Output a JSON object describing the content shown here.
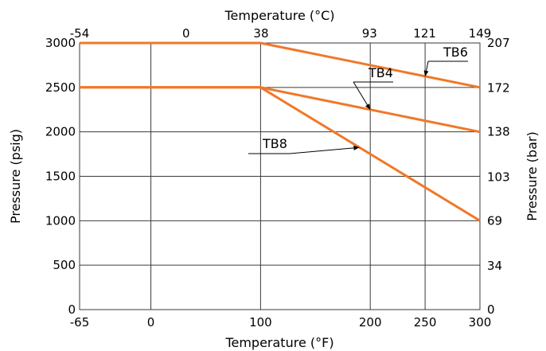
{
  "chart_data": {
    "type": "line",
    "title": "",
    "xlabel": "Temperature (°F)",
    "ylabel": "Pressure (psig)",
    "x2label": "Temperature (°C)",
    "y2label": "Pressure (bar)",
    "xlim": [
      -65,
      300
    ],
    "ylim": [
      0,
      3000
    ],
    "grid": true,
    "line_color": "#f07828",
    "x_ticks": [
      {
        "value": -65,
        "label": "-65"
      },
      {
        "value": 0,
        "label": "0"
      },
      {
        "value": 100,
        "label": "100"
      },
      {
        "value": 200,
        "label": "200"
      },
      {
        "value": 250,
        "label": "250"
      },
      {
        "value": 300,
        "label": "300"
      }
    ],
    "x2_ticks": [
      {
        "value": -54,
        "label": "-54"
      },
      {
        "value": 0,
        "label": "0"
      },
      {
        "value": 38,
        "label": "38"
      },
      {
        "value": 93,
        "label": "93"
      },
      {
        "value": 121,
        "label": "121"
      },
      {
        "value": 149,
        "label": "149"
      }
    ],
    "y_ticks": [
      {
        "value": 0,
        "label": "0"
      },
      {
        "value": 500,
        "label": "500"
      },
      {
        "value": 1000,
        "label": "1000"
      },
      {
        "value": 1500,
        "label": "1500"
      },
      {
        "value": 2000,
        "label": "2000"
      },
      {
        "value": 2500,
        "label": "2500"
      },
      {
        "value": 3000,
        "label": "3000"
      }
    ],
    "y2_ticks": [
      {
        "value": 0,
        "label": "0"
      },
      {
        "value": 34,
        "label": "34"
      },
      {
        "value": 69,
        "label": "69"
      },
      {
        "value": 103,
        "label": "103"
      },
      {
        "value": 138,
        "label": "138"
      },
      {
        "value": 172,
        "label": "172"
      },
      {
        "value": 207,
        "label": "207"
      }
    ],
    "series": [
      {
        "name": "TB6",
        "points": [
          {
            "x": -65,
            "y": 3000
          },
          {
            "x": 100,
            "y": 3000
          },
          {
            "x": 300,
            "y": 2500
          }
        ]
      },
      {
        "name": "TB4",
        "points": [
          {
            "x": -65,
            "y": 2500
          },
          {
            "x": 100,
            "y": 2500
          },
          {
            "x": 300,
            "y": 2000
          }
        ]
      },
      {
        "name": "TB8",
        "points": [
          {
            "x": -65,
            "y": 2500
          },
          {
            "x": 100,
            "y": 2500
          },
          {
            "x": 300,
            "y": 1000
          }
        ]
      }
    ]
  }
}
